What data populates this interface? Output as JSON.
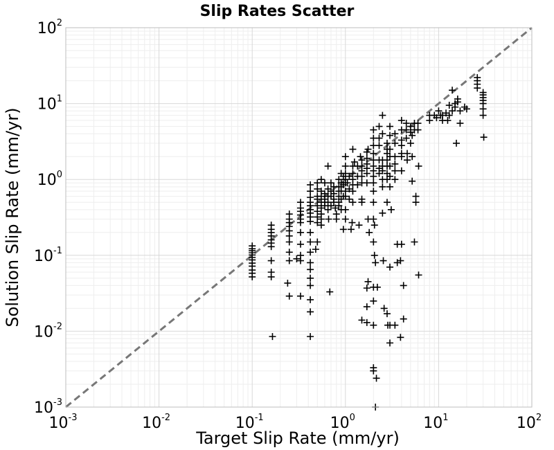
{
  "chart_data": {
    "type": "scatter",
    "title": "Slip Rates Scatter",
    "xlabel": "Target Slip Rate (mm/yr)",
    "ylabel": "Solution Slip Rate (mm/yr)",
    "xscale": "log",
    "yscale": "log",
    "xlim": [
      0.001,
      100
    ],
    "ylim": [
      0.001,
      100
    ],
    "grid": true,
    "marker": "plus",
    "marker_color": "#000000",
    "reference_line": {
      "style": "dashed",
      "color": "#777777",
      "from": [
        0.001,
        0.001
      ],
      "to": [
        100,
        100
      ]
    },
    "xticks": [
      {
        "base": "10",
        "exp": "-3"
      },
      {
        "base": "10",
        "exp": "-2"
      },
      {
        "base": "10",
        "exp": "-1"
      },
      {
        "base": "10",
        "exp": "0"
      },
      {
        "base": "10",
        "exp": "1"
      },
      {
        "base": "10",
        "exp": "2"
      }
    ],
    "yticks": [
      {
        "base": "10",
        "exp": "-3"
      },
      {
        "base": "10",
        "exp": "-2"
      },
      {
        "base": "10",
        "exp": "-1"
      },
      {
        "base": "10",
        "exp": "0"
      },
      {
        "base": "10",
        "exp": "1"
      },
      {
        "base": "10",
        "exp": "2"
      }
    ],
    "points": [
      [
        0.1,
        0.133
      ],
      [
        0.1,
        0.122
      ],
      [
        0.1,
        0.115
      ],
      [
        0.1,
        0.108
      ],
      [
        0.1,
        0.101
      ],
      [
        0.1,
        0.094
      ],
      [
        0.1,
        0.087
      ],
      [
        0.1,
        0.079
      ],
      [
        0.1,
        0.072
      ],
      [
        0.1,
        0.064
      ],
      [
        0.1,
        0.058
      ],
      [
        0.1,
        0.052
      ],
      [
        0.16,
        0.25
      ],
      [
        0.16,
        0.22
      ],
      [
        0.16,
        0.2
      ],
      [
        0.16,
        0.18
      ],
      [
        0.16,
        0.16
      ],
      [
        0.16,
        0.145
      ],
      [
        0.16,
        0.13
      ],
      [
        0.16,
        0.085
      ],
      [
        0.16,
        0.06
      ],
      [
        0.16,
        0.052
      ],
      [
        0.165,
        0.0085
      ],
      [
        0.25,
        0.35
      ],
      [
        0.25,
        0.3
      ],
      [
        0.25,
        0.27
      ],
      [
        0.25,
        0.24
      ],
      [
        0.25,
        0.21
      ],
      [
        0.25,
        0.18
      ],
      [
        0.25,
        0.15
      ],
      [
        0.25,
        0.11
      ],
      [
        0.25,
        0.085
      ],
      [
        0.24,
        0.043
      ],
      [
        0.25,
        0.029
      ],
      [
        0.33,
        0.5
      ],
      [
        0.33,
        0.42
      ],
      [
        0.33,
        0.38
      ],
      [
        0.33,
        0.34
      ],
      [
        0.33,
        0.3
      ],
      [
        0.33,
        0.27
      ],
      [
        0.33,
        0.2
      ],
      [
        0.33,
        0.14
      ],
      [
        0.33,
        0.1
      ],
      [
        0.33,
        0.085
      ],
      [
        0.33,
        0.029
      ],
      [
        0.3,
        0.09
      ],
      [
        0.42,
        0.85
      ],
      [
        0.42,
        0.7
      ],
      [
        0.42,
        0.58
      ],
      [
        0.42,
        0.5
      ],
      [
        0.42,
        0.45
      ],
      [
        0.42,
        0.4
      ],
      [
        0.42,
        0.36
      ],
      [
        0.42,
        0.32
      ],
      [
        0.42,
        0.28
      ],
      [
        0.42,
        0.2
      ],
      [
        0.42,
        0.15
      ],
      [
        0.42,
        0.11
      ],
      [
        0.42,
        0.08
      ],
      [
        0.42,
        0.065
      ],
      [
        0.42,
        0.05
      ],
      [
        0.42,
        0.04
      ],
      [
        0.42,
        0.026
      ],
      [
        0.42,
        0.018
      ],
      [
        0.42,
        0.0085
      ],
      [
        0.5,
        0.9
      ],
      [
        0.5,
        0.75
      ],
      [
        0.5,
        0.6
      ],
      [
        0.5,
        0.55
      ],
      [
        0.5,
        0.45
      ],
      [
        0.5,
        0.38
      ],
      [
        0.5,
        0.32
      ],
      [
        0.5,
        0.27
      ],
      [
        0.5,
        0.15
      ],
      [
        0.48,
        0.12
      ],
      [
        0.55,
        1.0
      ],
      [
        0.55,
        0.7
      ],
      [
        0.55,
        0.6
      ],
      [
        0.55,
        0.5
      ],
      [
        0.55,
        0.42
      ],
      [
        0.55,
        0.35
      ],
      [
        0.55,
        0.3
      ],
      [
        0.55,
        0.25
      ],
      [
        0.6,
        0.9
      ],
      [
        0.6,
        0.65
      ],
      [
        0.6,
        0.55
      ],
      [
        0.6,
        0.5
      ],
      [
        0.6,
        0.45
      ],
      [
        0.65,
        1.5
      ],
      [
        0.65,
        0.75
      ],
      [
        0.65,
        0.6
      ],
      [
        0.65,
        0.5
      ],
      [
        0.65,
        0.4
      ],
      [
        0.66,
        0.3
      ],
      [
        0.7,
        0.9
      ],
      [
        0.7,
        0.7
      ],
      [
        0.7,
        0.6
      ],
      [
        0.7,
        0.45
      ],
      [
        0.68,
        0.033
      ],
      [
        0.75,
        0.8
      ],
      [
        0.75,
        0.65
      ],
      [
        0.75,
        0.55
      ],
      [
        0.75,
        0.5
      ],
      [
        0.78,
        0.42
      ],
      [
        0.8,
        0.35
      ],
      [
        0.8,
        0.3
      ],
      [
        0.85,
        1.0
      ],
      [
        0.85,
        0.8
      ],
      [
        0.85,
        0.7
      ],
      [
        0.85,
        0.6
      ],
      [
        0.85,
        0.5
      ],
      [
        0.85,
        0.45
      ],
      [
        0.9,
        1.2
      ],
      [
        0.9,
        0.9
      ],
      [
        0.9,
        0.8
      ],
      [
        0.9,
        0.7
      ],
      [
        0.9,
        0.55
      ],
      [
        0.9,
        0.4
      ],
      [
        0.95,
        1.1
      ],
      [
        0.95,
        0.85
      ],
      [
        0.95,
        0.6
      ],
      [
        0.95,
        0.22
      ],
      [
        1.0,
        2.0
      ],
      [
        1.0,
        1.5
      ],
      [
        1.0,
        1.2
      ],
      [
        1.0,
        1.0
      ],
      [
        1.0,
        0.9
      ],
      [
        1.0,
        0.7
      ],
      [
        1.0,
        0.6
      ],
      [
        1.0,
        0.4
      ],
      [
        1.0,
        0.3
      ],
      [
        1.05,
        0.9
      ],
      [
        1.1,
        1.1
      ],
      [
        1.1,
        0.75
      ],
      [
        1.1,
        0.55
      ],
      [
        1.15,
        0.22
      ],
      [
        1.18,
        0.27
      ],
      [
        1.2,
        2.5
      ],
      [
        1.2,
        1.5
      ],
      [
        1.2,
        1.2
      ],
      [
        1.2,
        1.0
      ],
      [
        1.2,
        0.85
      ],
      [
        1.2,
        0.7
      ],
      [
        1.2,
        0.5
      ],
      [
        1.25,
        1.7
      ],
      [
        1.35,
        1.5
      ],
      [
        1.35,
        1.1
      ],
      [
        1.35,
        0.85
      ],
      [
        1.4,
        0.25
      ],
      [
        1.45,
        2.0
      ],
      [
        1.5,
        1.8
      ],
      [
        1.5,
        1.5
      ],
      [
        1.5,
        1.3
      ],
      [
        1.5,
        1.1
      ],
      [
        1.5,
        0.9
      ],
      [
        1.5,
        0.55
      ],
      [
        1.5,
        0.5
      ],
      [
        1.5,
        0.014
      ],
      [
        1.7,
        2.3
      ],
      [
        1.7,
        1.9
      ],
      [
        1.7,
        1.6
      ],
      [
        1.7,
        1.4
      ],
      [
        1.7,
        1.2
      ],
      [
        1.7,
        0.9
      ],
      [
        1.75,
        2.5
      ],
      [
        1.75,
        0.3
      ],
      [
        1.8,
        0.2
      ],
      [
        1.75,
        0.045
      ],
      [
        1.7,
        0.037
      ],
      [
        1.7,
        0.021
      ],
      [
        1.7,
        0.013
      ],
      [
        2.0,
        4.5
      ],
      [
        2.0,
        3.5
      ],
      [
        2.0,
        2.8
      ],
      [
        2.0,
        2.2
      ],
      [
        2.0,
        1.8
      ],
      [
        2.0,
        1.5
      ],
      [
        2.0,
        1.3
      ],
      [
        2.0,
        1.1
      ],
      [
        2.0,
        0.9
      ],
      [
        2.0,
        0.7
      ],
      [
        2.0,
        0.5
      ],
      [
        2.0,
        0.3
      ],
      [
        2.05,
        0.25
      ],
      [
        2.0,
        0.15
      ],
      [
        2.05,
        0.1
      ],
      [
        2.1,
        0.08
      ],
      [
        2.0,
        0.038
      ],
      [
        2.0,
        0.025
      ],
      [
        2.0,
        0.012
      ],
      [
        2.0,
        0.0033
      ],
      [
        2.0,
        0.003
      ],
      [
        2.15,
        0.0024
      ],
      [
        2.1,
        0.001
      ],
      [
        2.2,
        0.038
      ],
      [
        2.3,
        5.0
      ],
      [
        2.3,
        3.5
      ],
      [
        2.3,
        2.8
      ],
      [
        2.3,
        1.8
      ],
      [
        2.3,
        1.4
      ],
      [
        2.3,
        1.2
      ],
      [
        2.5,
        7.0
      ],
      [
        2.5,
        4.0
      ],
      [
        2.5,
        1.8
      ],
      [
        2.5,
        1.5
      ],
      [
        2.5,
        1.3
      ],
      [
        2.5,
        1.0
      ],
      [
        2.5,
        0.8
      ],
      [
        2.5,
        0.36
      ],
      [
        2.55,
        0.085
      ],
      [
        2.6,
        0.02
      ],
      [
        2.8,
        3.0
      ],
      [
        2.8,
        2.5
      ],
      [
        2.8,
        2.2
      ],
      [
        2.8,
        1.8
      ],
      [
        2.8,
        1.5
      ],
      [
        2.8,
        1.2
      ],
      [
        2.8,
        1.0
      ],
      [
        2.8,
        0.5
      ],
      [
        2.8,
        0.017
      ],
      [
        2.85,
        0.012
      ],
      [
        3.0,
        5.0
      ],
      [
        3.0,
        3.8
      ],
      [
        3.0,
        2.5
      ],
      [
        3.0,
        2.0
      ],
      [
        3.0,
        1.5
      ],
      [
        3.0,
        1.1
      ],
      [
        3.0,
        0.8
      ],
      [
        3.0,
        0.07
      ],
      [
        3.0,
        0.012
      ],
      [
        3.0,
        0.007
      ],
      [
        3.1,
        0.4
      ],
      [
        3.4,
        4.0
      ],
      [
        3.4,
        3.0
      ],
      [
        3.4,
        2.0
      ],
      [
        3.4,
        1.6
      ],
      [
        3.4,
        1.3
      ],
      [
        3.4,
        1.0
      ],
      [
        3.4,
        0.012
      ],
      [
        3.6,
        0.08
      ],
      [
        3.6,
        0.14
      ],
      [
        4.0,
        6.0
      ],
      [
        4.0,
        4.5
      ],
      [
        4.0,
        3.3
      ],
      [
        4.0,
        2.8
      ],
      [
        4.0,
        2.2
      ],
      [
        4.0,
        2.0
      ],
      [
        4.0,
        1.3
      ],
      [
        4.0,
        0.14
      ],
      [
        4.2,
        0.04
      ],
      [
        4.2,
        0.0145
      ],
      [
        3.9,
        0.0083
      ],
      [
        3.9,
        0.085
      ],
      [
        4.5,
        5.5
      ],
      [
        4.5,
        4.5
      ],
      [
        4.5,
        3.5
      ],
      [
        4.6,
        2.2
      ],
      [
        4.6,
        1.8
      ],
      [
        5.0,
        5.0
      ],
      [
        5.0,
        4.2
      ],
      [
        5.2,
        3.8
      ],
      [
        5.0,
        3.0
      ],
      [
        5.2,
        2.0
      ],
      [
        5.2,
        0.95
      ],
      [
        5.5,
        5.5
      ],
      [
        5.5,
        4.5
      ],
      [
        5.7,
        0.6
      ],
      [
        5.7,
        0.5
      ],
      [
        5.5,
        0.15
      ],
      [
        6.0,
        5.5
      ],
      [
        6.0,
        4.5
      ],
      [
        6.1,
        1.5
      ],
      [
        6.1,
        0.055
      ],
      [
        8.0,
        7.0
      ],
      [
        8.0,
        6.0
      ],
      [
        9.0,
        7.0
      ],
      [
        9.5,
        6.5
      ],
      [
        10.0,
        8.0
      ],
      [
        10.5,
        7.0
      ],
      [
        11.0,
        7.0
      ],
      [
        11.0,
        6.0
      ],
      [
        12.0,
        7.5
      ],
      [
        12.5,
        6.0
      ],
      [
        13.0,
        7.0
      ],
      [
        13.0,
        9.5
      ],
      [
        14.0,
        8.0
      ],
      [
        14.0,
        15.0
      ],
      [
        15.0,
        10.0
      ],
      [
        15.0,
        9.0
      ],
      [
        16.0,
        11.5
      ],
      [
        16.0,
        10.5
      ],
      [
        17.0,
        8.0
      ],
      [
        17.0,
        5.5
      ],
      [
        15.5,
        3.0
      ],
      [
        19.0,
        9.0
      ],
      [
        20.0,
        8.5
      ],
      [
        26.0,
        22.0
      ],
      [
        26.0,
        20.0
      ],
      [
        26.0,
        18.0
      ],
      [
        26.0,
        16.0
      ],
      [
        30.0,
        14.0
      ],
      [
        30.0,
        13.0
      ],
      [
        30.0,
        12.0
      ],
      [
        30.0,
        11.0
      ],
      [
        30.0,
        10.0
      ],
      [
        30.0,
        8.5
      ],
      [
        30.0,
        7.0
      ],
      [
        30.5,
        3.6
      ]
    ]
  }
}
